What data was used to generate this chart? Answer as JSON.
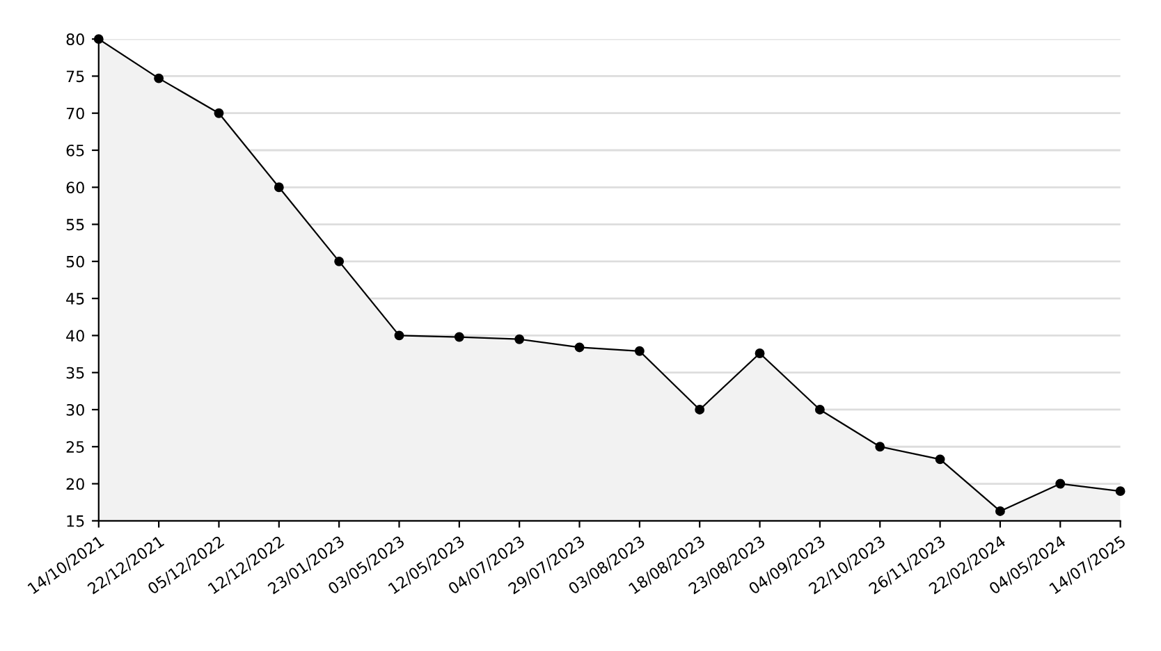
{
  "chart_data": {
    "type": "area",
    "categories": [
      "14/10/2021",
      "22/12/2021",
      "05/12/2022",
      "12/12/2022",
      "23/01/2023",
      "03/05/2023",
      "12/05/2023",
      "04/07/2023",
      "29/07/2023",
      "03/08/2023",
      "18/08/2023",
      "23/08/2023",
      "04/09/2023",
      "22/10/2023",
      "26/11/2023",
      "22/02/2024",
      "04/05/2024",
      "14/07/2025"
    ],
    "series": [
      {
        "color": "#000000",
        "values": [
          80,
          74.7,
          70,
          60,
          50,
          40,
          39.8,
          39.5,
          38.4,
          37.9,
          30,
          37.6,
          30,
          25,
          23.3,
          16.3,
          20,
          19
        ]
      }
    ],
    "ylim": [
      15,
      80
    ],
    "yticks": [
      15,
      20,
      25,
      30,
      35,
      40,
      45,
      50,
      55,
      60,
      65,
      70,
      75,
      80
    ],
    "grid": "y",
    "marker": "circle",
    "line_style": "solid"
  }
}
